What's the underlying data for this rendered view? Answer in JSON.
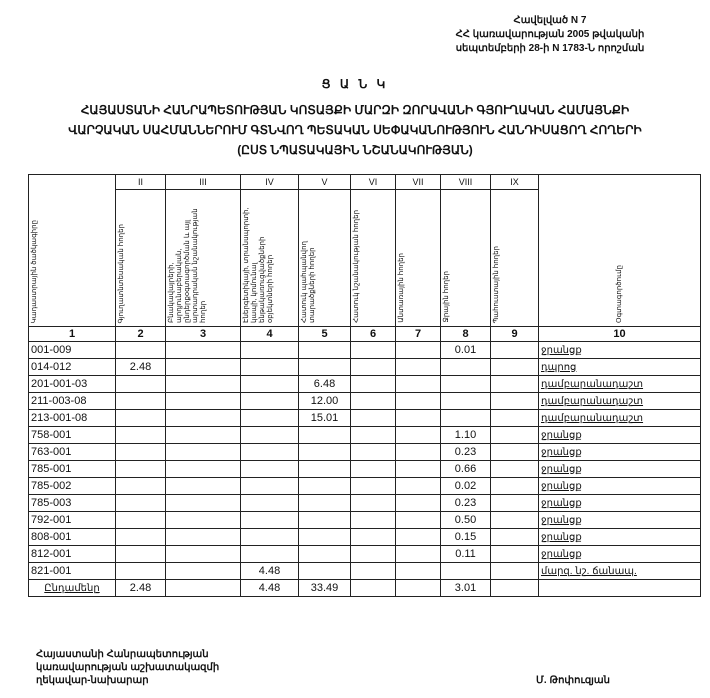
{
  "appendix": [
    "Հավելված N 7",
    "ՀՀ կառավարության 2005 թվականի",
    "սեպտեմբերի 28-ի N 1783-Ն որոշման"
  ],
  "title": "Ց Ա Ն Կ",
  "subtitle": [
    "ՀԱՅԱՍՏԱՆԻ ՀԱՆՐԱՊԵՏՈՒԹՅԱՆ ԿՈՏԱՅՔԻ ՄԱՐԶԻ ԶՈՐԱՎԱՆԻ ԳՅՈՒՂԱԿԱՆ ՀԱՄԱՅՆՔԻ",
    "ՎԱՐՉԱԿԱՆ ՍԱՀՄԱՆՆԵՐՈՒՄ ԳՏՆՎՈՂ ՊԵՏԱԿԱՆ ՍԵՓԱԿԱՆՈՒԹՅՈՒՆ ՀԱՆԴԻՍԱՑՈՂ ՀՈՂԵՐԻ",
    "(ԸՍՏ ՆՊԱՏԱԿԱՅԻՆ ՆՇԱՆԱԿՈՒԹՅԱՆ)"
  ],
  "table": {
    "roman": [
      "II",
      "III",
      "IV",
      "V",
      "VI",
      "VII",
      "VIII",
      "IX"
    ],
    "headers": [
      "Կադաստրային ծածկագիրը",
      "Գյուղատնտեսական հողեր",
      "Բնակավայրերի, արդյունաբերական, ընդերքօգտագործման և այլ արտադրական նշանակության հողեր",
      "Էներգետիկայի, տրանսպորտի, կապի, կոմունալ ենթակառուցվածքների օբյեկտների հողեր",
      "Հատուկ պահպանվող տարածքների հողեր",
      "Հատուկ նշանակության հողեր",
      "Անտառային հողեր",
      "Ջրային հողեր",
      "Պահուստային հողեր",
      "Օգտագործումը"
    ],
    "numbers": [
      "1",
      "2",
      "3",
      "4",
      "5",
      "6",
      "7",
      "8",
      "9",
      "10"
    ],
    "rows": [
      [
        "001-009",
        "",
        "",
        "",
        "",
        "",
        "",
        "0.01",
        "",
        "ջրանցք"
      ],
      [
        "014-012",
        "2.48",
        "",
        "",
        "",
        "",
        "",
        "",
        "",
        "դպրոց"
      ],
      [
        "201-001-03",
        "",
        "",
        "",
        "6.48",
        "",
        "",
        "",
        "",
        "դամբարանադաշտ"
      ],
      [
        "211-003-08",
        "",
        "",
        "",
        "12.00",
        "",
        "",
        "",
        "",
        "դամբարանադաշտ"
      ],
      [
        "213-001-08",
        "",
        "",
        "",
        "15.01",
        "",
        "",
        "",
        "",
        "դամբարանադաշտ"
      ],
      [
        "758-001",
        "",
        "",
        "",
        "",
        "",
        "",
        "1.10",
        "",
        "ջրանցք"
      ],
      [
        "763-001",
        "",
        "",
        "",
        "",
        "",
        "",
        "0.23",
        "",
        "ջրանցք"
      ],
      [
        "785-001",
        "",
        "",
        "",
        "",
        "",
        "",
        "0.66",
        "",
        "ջրանցք"
      ],
      [
        "785-002",
        "",
        "",
        "",
        "",
        "",
        "",
        "0.02",
        "",
        "ջրանցք"
      ],
      [
        "785-003",
        "",
        "",
        "",
        "",
        "",
        "",
        "0.23",
        "",
        "ջրանցք"
      ],
      [
        "792-001",
        "",
        "",
        "",
        "",
        "",
        "",
        "0.50",
        "",
        "ջրանցք"
      ],
      [
        "808-001",
        "",
        "",
        "",
        "",
        "",
        "",
        "0.15",
        "",
        "ջրանցք"
      ],
      [
        "812-001",
        "",
        "",
        "",
        "",
        "",
        "",
        "0.11",
        "",
        "ջրանցք"
      ],
      [
        "821-001",
        "",
        "",
        "4.48",
        "",
        "",
        "",
        "",
        "",
        "մարզ. նշ. ճանապ."
      ]
    ],
    "total": [
      "Ընդամենը",
      "2.48",
      "",
      "4.48",
      "33.49",
      "",
      "",
      "3.01",
      "",
      ""
    ]
  },
  "footer": {
    "position": [
      "Հայաստանի Հանրապետության",
      "կառավարության աշխատակազմի",
      "ղեկավար-նախարար"
    ],
    "signatory": "Մ. Թոփուզյան"
  }
}
